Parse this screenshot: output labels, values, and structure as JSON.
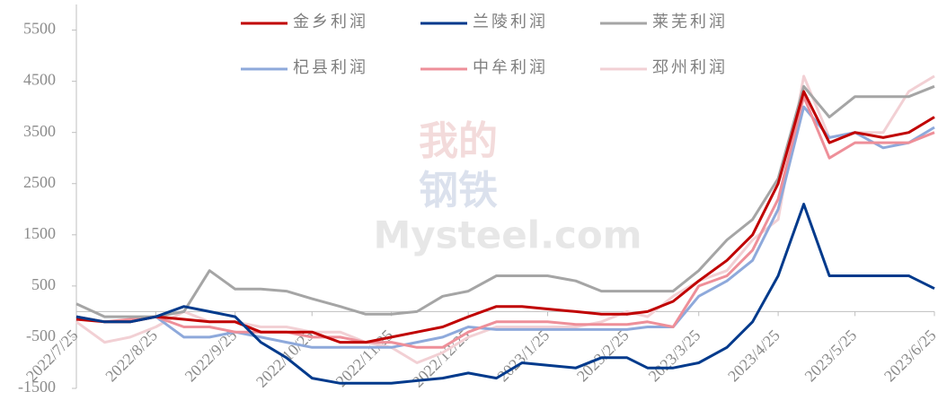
{
  "chart_data": {
    "type": "line",
    "watermark": [
      "我的",
      "钢铁",
      "Mysteel.com"
    ],
    "x": [
      "2022/7/25",
      "2022/8/5",
      "2022/8/15",
      "2022/8/25",
      "2022/9/5",
      "2022/9/15",
      "2022/9/25",
      "2022/10/5",
      "2022/10/15",
      "2022/10/25",
      "2022/11/5",
      "2022/11/15",
      "2022/11/25",
      "2022/12/5",
      "2022/12/15",
      "2022/12/25",
      "2023/1/5",
      "2023/1/15",
      "2023/1/25",
      "2023/2/5",
      "2023/2/15",
      "2023/2/25",
      "2023/3/5",
      "2023/3/15",
      "2023/3/25",
      "2023/4/5",
      "2023/4/15",
      "2023/4/25",
      "2023/5/5",
      "2023/5/15",
      "2023/5/25",
      "2023/6/5",
      "2023/6/15",
      "2023/6/25"
    ],
    "xlim": [
      "2022/7/25",
      "2023/6/25"
    ],
    "xticks": [
      "2022/7/25",
      "2022/8/25",
      "2022/9/25",
      "2022/10/25",
      "2022/11/25",
      "2022/12/25",
      "2023/1/25",
      "2023/2/25",
      "2023/3/25",
      "2023/4/25",
      "2023/5/25",
      "2023/6/25"
    ],
    "ylim": [
      -1500,
      6000
    ],
    "yticks": [
      -1500,
      -500,
      500,
      1500,
      2500,
      3500,
      4500,
      5500
    ],
    "series": [
      {
        "name": "金乡利润",
        "color": "#c00000",
        "values": [
          -150,
          -200,
          -200,
          -100,
          -150,
          -200,
          -200,
          -400,
          -400,
          -400,
          -600,
          -600,
          -500,
          -400,
          -300,
          -100,
          100,
          100,
          50,
          0,
          -50,
          -50,
          0,
          200,
          600,
          1000,
          1500,
          2500,
          4300,
          3300,
          3500,
          3400,
          3500,
          3800
        ]
      },
      {
        "name": "兰陵利润",
        "color": "#003a8c",
        "values": [
          -100,
          -200,
          -200,
          -100,
          100,
          0,
          -100,
          -600,
          -900,
          -1300,
          -1400,
          -1400,
          -1400,
          -1350,
          -1300,
          -1200,
          -1300,
          -1000,
          -1050,
          -1100,
          -900,
          -900,
          -1100,
          -1100,
          -1000,
          -700,
          -200,
          700,
          2100,
          700,
          700,
          700,
          700,
          450
        ]
      },
      {
        "name": "莱芜利润",
        "color": "#a5a5a5",
        "values": [
          150,
          -100,
          -100,
          -100,
          0,
          800,
          440,
          440,
          400,
          250,
          100,
          -50,
          -50,
          0,
          300,
          400,
          700,
          700,
          700,
          600,
          400,
          400,
          400,
          400,
          800,
          1400,
          1800,
          2600,
          4400,
          3800,
          4200,
          4200,
          4200,
          4400
        ]
      },
      {
        "name": "杞县利润",
        "color": "#8ea9db",
        "values": [
          -100,
          -200,
          -200,
          -100,
          -500,
          -500,
          -400,
          -500,
          -600,
          -700,
          -700,
          -700,
          -700,
          -600,
          -500,
          -300,
          -350,
          -350,
          -350,
          -350,
          -350,
          -350,
          -300,
          -300,
          300,
          600,
          1000,
          2000,
          4000,
          3400,
          3500,
          3200,
          3300,
          3600
        ]
      },
      {
        "name": "中牟利润",
        "color": "#ee8f99",
        "values": [
          -100,
          -200,
          -150,
          -100,
          -300,
          -300,
          -400,
          -400,
          -400,
          -500,
          -500,
          -600,
          -600,
          -700,
          -700,
          -400,
          -200,
          -200,
          -200,
          -250,
          -250,
          -250,
          -200,
          -300,
          500,
          700,
          1200,
          2200,
          4200,
          3000,
          3300,
          3300,
          3300,
          3500
        ]
      },
      {
        "name": "邳州利润",
        "color": "#f2d0d4",
        "values": [
          -200,
          -600,
          -500,
          -300,
          0,
          -200,
          -200,
          -300,
          -300,
          -400,
          -400,
          -600,
          -700,
          -1000,
          -800,
          -500,
          -300,
          -300,
          -300,
          -300,
          -200,
          0,
          -100,
          300,
          600,
          800,
          1400,
          1800,
          4600,
          3400,
          3500,
          3500,
          4300,
          4600
        ]
      }
    ]
  }
}
